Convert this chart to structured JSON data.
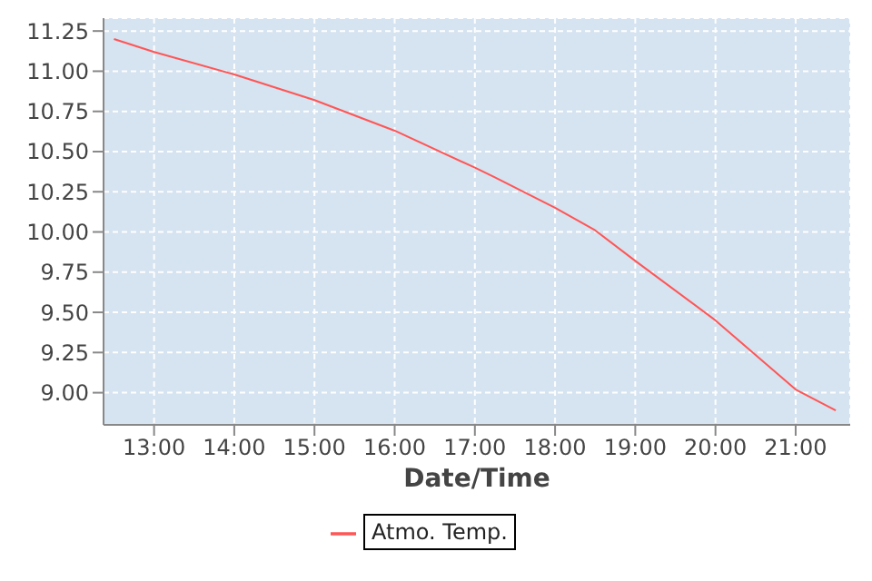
{
  "chart_data": {
    "type": "line",
    "xlabel": "Date/Time",
    "x": [
      12.5,
      13,
      14,
      15,
      16,
      17,
      17.25,
      18,
      18.5,
      19,
      20,
      21,
      21.5
    ],
    "series": [
      {
        "name": "Atmo. Temp.",
        "color": "#ff5555",
        "values": [
          11.2,
          11.12,
          10.98,
          10.82,
          10.63,
          10.4,
          10.34,
          10.15,
          10.01,
          9.82,
          9.45,
          9.02,
          8.89
        ]
      }
    ],
    "xlim": [
      12.37,
      21.68
    ],
    "ylim": [
      8.8,
      11.33
    ],
    "xticks": [
      {
        "value": 13,
        "label": "13:00"
      },
      {
        "value": 14,
        "label": "14:00"
      },
      {
        "value": 15,
        "label": "15:00"
      },
      {
        "value": 16,
        "label": "16:00"
      },
      {
        "value": 17,
        "label": "17:00"
      },
      {
        "value": 18,
        "label": "18:00"
      },
      {
        "value": 19,
        "label": "19:00"
      },
      {
        "value": 20,
        "label": "20:00"
      },
      {
        "value": 21,
        "label": "21:00"
      }
    ],
    "yticks": [
      {
        "value": 9,
        "label": "9.00"
      },
      {
        "value": 9.25,
        "label": "9.25"
      },
      {
        "value": 9.5,
        "label": "9.50"
      },
      {
        "value": 9.75,
        "label": "9.75"
      },
      {
        "value": 10,
        "label": "10.00"
      },
      {
        "value": 10.25,
        "label": "10.25"
      },
      {
        "value": 10.5,
        "label": "10.50"
      },
      {
        "value": 10.75,
        "label": "10.75"
      },
      {
        "value": 11,
        "label": "11.00"
      },
      {
        "value": 11.25,
        "label": "11.25"
      }
    ],
    "grid": true,
    "legend": "bottom",
    "marker": "none",
    "line_style": "solid"
  }
}
